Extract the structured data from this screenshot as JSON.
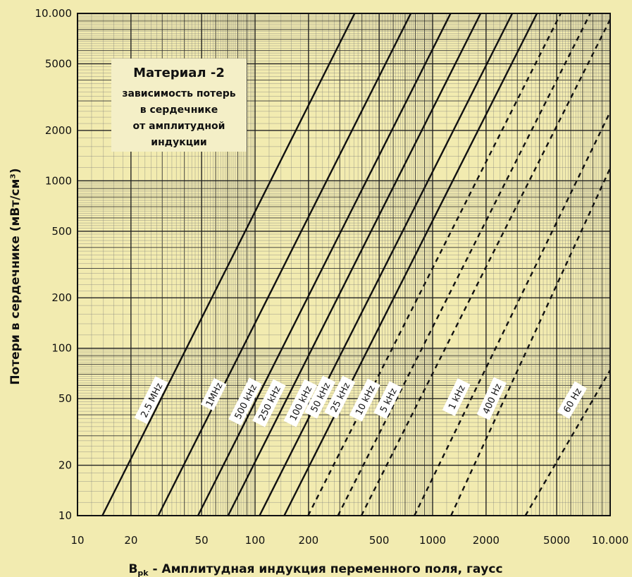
{
  "chart_data": {
    "type": "line",
    "title": "Материал -2",
    "subtitle_lines": [
      "зависимость потерь",
      "в сердечнике",
      "от амплитудной",
      "индукции"
    ],
    "xlabel": "B",
    "xlabel_sub": "pk",
    "xlabel_rest": " - Амплитудная индукция переменного поля, гаусс",
    "ylabel": "Потери в сердечнике (мВт/см³)",
    "x_scale": "log",
    "y_scale": "log",
    "xlim": [
      10,
      10000
    ],
    "ylim": [
      10,
      10000
    ],
    "x_ticks": [
      {
        "value": 10,
        "label": "10"
      },
      {
        "value": 20,
        "label": "20"
      },
      {
        "value": 50,
        "label": "50"
      },
      {
        "value": 100,
        "label": "100"
      },
      {
        "value": 200,
        "label": "200"
      },
      {
        "value": 500,
        "label": "500"
      },
      {
        "value": 1000,
        "label": "1000"
      },
      {
        "value": 2000,
        "label": "2000"
      },
      {
        "value": 5000,
        "label": "5000"
      },
      {
        "value": 10000,
        "label": "10.000"
      }
    ],
    "y_ticks": [
      {
        "value": 10,
        "label": "10"
      },
      {
        "value": 20,
        "label": "20"
      },
      {
        "value": 50,
        "label": "50"
      },
      {
        "value": 100,
        "label": "100"
      },
      {
        "value": 200,
        "label": "200"
      },
      {
        "value": 500,
        "label": "500"
      },
      {
        "value": 1000,
        "label": "1000"
      },
      {
        "value": 2000,
        "label": "2000"
      },
      {
        "value": 5000,
        "label": "5000"
      },
      {
        "value": 10000,
        "label": "10.000"
      }
    ],
    "grid": true,
    "series": [
      {
        "name": "2.5 MHz",
        "style": "solid",
        "x": [
          13.8,
          364
        ],
        "y": [
          10,
          10000
        ],
        "label_at": [
          26,
          49
        ]
      },
      {
        "name": "1MHz",
        "style": "solid",
        "x": [
          28.5,
          754
        ],
        "y": [
          10,
          10000
        ],
        "label_at": [
          58.5,
          53
        ]
      },
      {
        "name": "500 kHz",
        "style": "solid",
        "x": [
          47.7,
          1263
        ],
        "y": [
          10,
          10000
        ],
        "label_at": [
          88,
          48
        ]
      },
      {
        "name": "250 kHz",
        "style": "solid",
        "x": [
          70.5,
          1864
        ],
        "y": [
          10,
          10000
        ],
        "label_at": [
          120,
          47
        ]
      },
      {
        "name": "100 kHz",
        "style": "solid",
        "x": [
          106,
          2810
        ],
        "y": [
          10,
          10000
        ],
        "label_at": [
          180,
          47
        ]
      },
      {
        "name": "50 kHz",
        "style": "solid",
        "x": [
          146,
          3870
        ],
        "y": [
          10,
          10000
        ],
        "label_at": [
          232,
          51
        ]
      },
      {
        "name": "25 kHz",
        "style": "dashed",
        "x": [
          199,
          5270
        ],
        "y": [
          10,
          10000
        ],
        "label_at": [
          300,
          51
        ]
      },
      {
        "name": "10 kHz",
        "style": "dashed",
        "x": [
          293,
          7730
        ],
        "y": [
          10,
          10000
        ],
        "label_at": [
          415,
          49
        ]
      },
      {
        "name": "5 kHz",
        "style": "dashed",
        "x": [
          397,
          10000
        ],
        "y": [
          10,
          9200
        ],
        "label_at": [
          560,
          49
        ]
      },
      {
        "name": "1 kHz",
        "style": "dashed",
        "x": [
          790,
          10000
        ],
        "y": [
          10,
          2580
        ],
        "label_at": [
          1360,
          51
        ]
      },
      {
        "name": "400 Hz",
        "style": "dashed",
        "x": [
          1270,
          10000
        ],
        "y": [
          10,
          1190
        ],
        "label_at": [
          2150,
          50
        ]
      },
      {
        "name": "60 Hz",
        "style": "dashed",
        "x": [
          3330,
          10000
        ],
        "y": [
          10,
          74
        ],
        "label_at": [
          6100,
          49
        ]
      }
    ]
  }
}
